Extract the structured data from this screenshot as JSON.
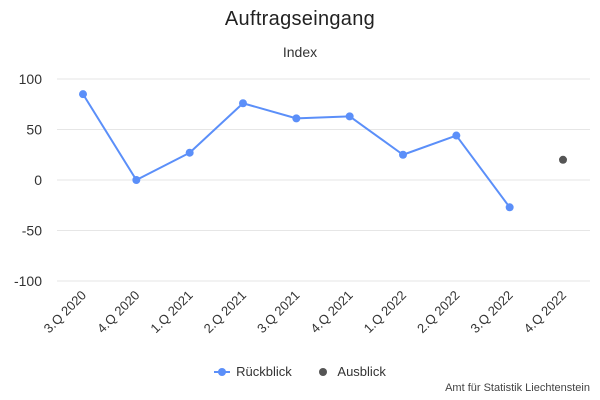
{
  "chart_data": {
    "type": "line",
    "title": "Auftragseingang",
    "subtitle": "Index",
    "categories": [
      "3.Q 2020",
      "4.Q 2020",
      "1.Q 2021",
      "2.Q 2021",
      "3.Q 2021",
      "4.Q 2021",
      "1.Q 2022",
      "2.Q 2022",
      "3.Q 2022",
      "4.Q 2022"
    ],
    "ylim": [
      -100,
      100
    ],
    "yticks": [
      100,
      50,
      0,
      -50,
      -100
    ],
    "grid": true,
    "legend_position": "bottom-center",
    "series": [
      {
        "name": "Rückblick",
        "color": "#5b8ff9",
        "values": [
          85,
          0,
          27,
          76,
          61,
          63,
          25,
          44,
          -27,
          null
        ]
      },
      {
        "name": "Ausblick",
        "color": "#555555",
        "values": [
          null,
          null,
          null,
          null,
          null,
          null,
          null,
          null,
          null,
          20
        ]
      }
    ]
  },
  "credit": "Amt für Statistik Liechtenstein"
}
